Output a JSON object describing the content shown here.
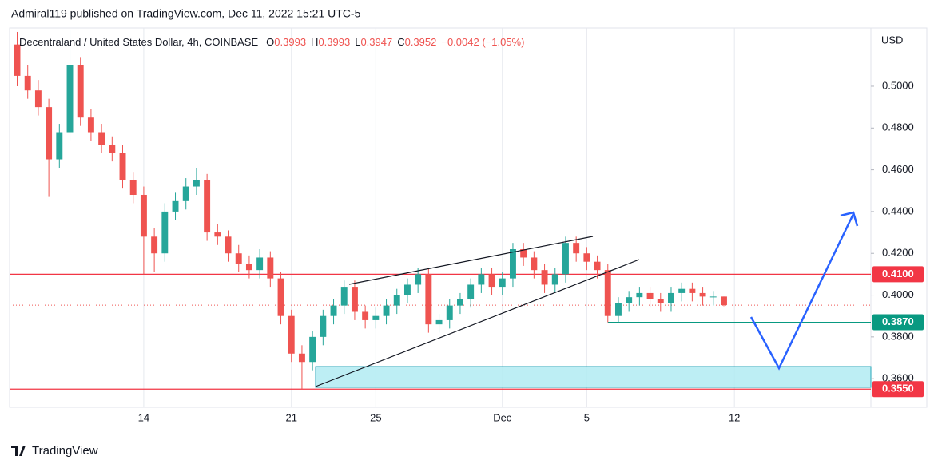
{
  "header": {
    "attribution": "Admiral119 published on TradingView.com, Dec 11, 2022 15:21 UTC-5"
  },
  "footer": {
    "brand": "TradingView"
  },
  "chart_data": {
    "type": "candlestick",
    "title": "Decentraland / United States Dollar, 4h, COINBASE",
    "ohlc_legend": [
      {
        "label": "O",
        "value": "0.3993"
      },
      {
        "label": "H",
        "value": "0.3993"
      },
      {
        "label": "L",
        "value": "0.3947"
      },
      {
        "label": "C",
        "value": "0.3952"
      }
    ],
    "change": "−0.0042 (−1.05%)",
    "y_axis_label": "USD",
    "up_color": "#26a69a",
    "down_color": "#ef5350",
    "x": [
      8,
      8.5,
      9,
      9.5,
      10,
      10.5,
      11,
      11.5,
      12,
      12.5,
      13,
      13.5,
      14,
      14.5,
      15,
      15.5,
      16,
      16.5,
      17,
      17.5,
      18,
      18.5,
      19,
      19.5,
      20,
      20.5,
      21,
      21.5,
      22,
      22.5,
      23,
      23.5,
      24,
      24.5,
      25,
      25.5,
      26,
      26.5,
      27,
      27.5,
      28,
      28.5,
      29,
      29.5,
      30,
      30.5,
      31,
      31.5,
      32,
      32.5,
      33,
      33.5,
      34,
      34.5,
      35,
      35.5,
      36,
      36.5,
      37,
      37.5,
      38,
      38.5,
      39,
      39.5,
      40,
      40.5,
      41,
      41.5
    ],
    "open": [
      0.52,
      0.505,
      0.498,
      0.49,
      0.465,
      0.478,
      0.51,
      0.485,
      0.478,
      0.472,
      0.468,
      0.455,
      0.448,
      0.428,
      0.42,
      0.44,
      0.445,
      0.452,
      0.455,
      0.43,
      0.428,
      0.42,
      0.415,
      0.412,
      0.418,
      0.408,
      0.39,
      0.372,
      0.368,
      0.38,
      0.39,
      0.395,
      0.404,
      0.392,
      0.388,
      0.39,
      0.395,
      0.4,
      0.405,
      0.41,
      0.386,
      0.388,
      0.395,
      0.398,
      0.405,
      0.41,
      0.404,
      0.408,
      0.422,
      0.418,
      0.412,
      0.405,
      0.41,
      0.425,
      0.42,
      0.416,
      0.412,
      0.39,
      0.396,
      0.399,
      0.401,
      0.398,
      0.396,
      0.401,
      0.403,
      0.401,
      0.3993,
      0.3993
    ],
    "high": [
      0.526,
      0.51,
      0.503,
      0.494,
      0.482,
      0.527,
      0.514,
      0.489,
      0.482,
      0.476,
      0.472,
      0.459,
      0.452,
      0.432,
      0.444,
      0.449,
      0.456,
      0.461,
      0.458,
      0.434,
      0.431,
      0.424,
      0.419,
      0.422,
      0.421,
      0.411,
      0.393,
      0.376,
      0.383,
      0.393,
      0.398,
      0.407,
      0.407,
      0.395,
      0.394,
      0.398,
      0.403,
      0.408,
      0.413,
      0.413,
      0.391,
      0.398,
      0.401,
      0.408,
      0.413,
      0.413,
      0.411,
      0.425,
      0.425,
      0.421,
      0.415,
      0.413,
      0.428,
      0.428,
      0.423,
      0.419,
      0.415,
      0.399,
      0.402,
      0.404,
      0.404,
      0.401,
      0.404,
      0.406,
      0.406,
      0.404,
      0.402,
      0.3993
    ],
    "low": [
      0.5,
      0.494,
      0.486,
      0.447,
      0.461,
      0.474,
      0.481,
      0.474,
      0.468,
      0.464,
      0.451,
      0.444,
      0.41,
      0.411,
      0.416,
      0.436,
      0.441,
      0.448,
      0.426,
      0.424,
      0.416,
      0.411,
      0.408,
      0.408,
      0.404,
      0.386,
      0.368,
      0.355,
      0.364,
      0.376,
      0.386,
      0.391,
      0.388,
      0.384,
      0.384,
      0.386,
      0.391,
      0.396,
      0.401,
      0.382,
      0.382,
      0.384,
      0.391,
      0.394,
      0.401,
      0.4,
      0.4,
      0.404,
      0.414,
      0.408,
      0.401,
      0.401,
      0.406,
      0.416,
      0.412,
      0.408,
      0.387,
      0.387,
      0.392,
      0.395,
      0.394,
      0.392,
      0.392,
      0.397,
      0.397,
      0.395,
      0.395,
      0.3947
    ],
    "close": [
      0.505,
      0.498,
      0.49,
      0.465,
      0.478,
      0.51,
      0.485,
      0.478,
      0.472,
      0.468,
      0.455,
      0.448,
      0.428,
      0.42,
      0.44,
      0.445,
      0.452,
      0.455,
      0.43,
      0.428,
      0.42,
      0.415,
      0.412,
      0.418,
      0.408,
      0.39,
      0.372,
      0.368,
      0.38,
      0.39,
      0.395,
      0.404,
      0.392,
      0.388,
      0.39,
      0.395,
      0.4,
      0.405,
      0.41,
      0.386,
      0.388,
      0.395,
      0.398,
      0.405,
      0.41,
      0.404,
      0.408,
      0.422,
      0.418,
      0.412,
      0.405,
      0.41,
      0.425,
      0.42,
      0.416,
      0.412,
      0.39,
      0.396,
      0.399,
      0.401,
      0.398,
      0.396,
      0.401,
      0.403,
      0.401,
      0.3993,
      0.3993,
      0.3952
    ],
    "xlim": [
      7.64,
      48.47
    ],
    "xticks": [
      14,
      21,
      25,
      {
        "value": 31,
        "label": "Dec"
      },
      5,
      12
    ],
    "xtick_positions": [
      14,
      21,
      25,
      31,
      35,
      42
    ],
    "ylim": [
      0.3463,
      0.5279
    ],
    "yticks": [
      {
        "value": 0.5,
        "label": "0.5000"
      },
      {
        "value": 0.48,
        "label": "0.4800"
      },
      {
        "value": 0.46,
        "label": "0.4600"
      },
      {
        "value": 0.44,
        "label": "0.4400"
      },
      {
        "value": 0.42,
        "label": "0.4200"
      },
      {
        "value": 0.4,
        "label": "0.4000"
      },
      {
        "value": 0.38,
        "label": "0.3800"
      },
      {
        "value": 0.36,
        "label": "0.3600"
      }
    ],
    "levels": [
      {
        "value": 0.41,
        "label": "0.4100",
        "color": "#f23645"
      },
      {
        "value": 0.387,
        "label": "0.3870",
        "color": "#089981",
        "x_start": 36
      },
      {
        "value": 0.355,
        "label": "0.3550",
        "color": "#f23645"
      }
    ]
  }
}
